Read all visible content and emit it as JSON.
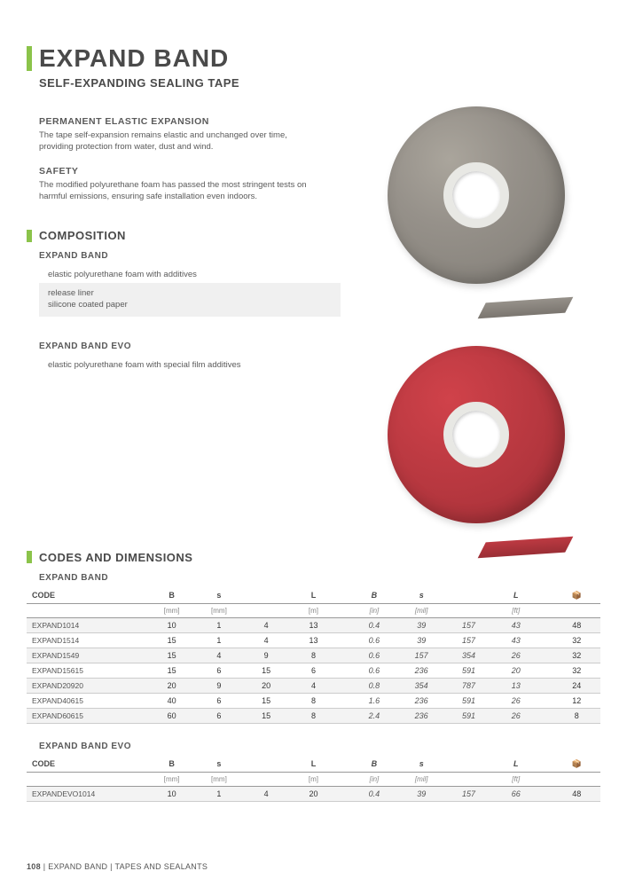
{
  "accent_color": "#8bc34a",
  "title": "EXPAND BAND",
  "subtitle": "SELF-EXPANDING SEALING TAPE",
  "features": [
    {
      "heading": "PERMANENT ELASTIC EXPANSION",
      "text": "The tape self-expansion remains elastic and unchanged over time, providing protection from water, dust and wind."
    },
    {
      "heading": "SAFETY",
      "text": "The modified polyurethane foam has passed the most stringent tests on harmful emissions, ensuring safe installation even indoors."
    }
  ],
  "composition_heading": "COMPOSITION",
  "composition": [
    {
      "name": "EXPAND BAND",
      "items": [
        {
          "type": "line",
          "text": "elastic polyurethane foam with additives"
        },
        {
          "type": "box",
          "text": "release liner\nsilicone coated paper"
        }
      ]
    },
    {
      "name": "EXPAND BAND EVO",
      "items": [
        {
          "type": "line",
          "text": "elastic polyurethane foam with special film additives"
        }
      ]
    }
  ],
  "images": {
    "gray_roll_color": "#96918a",
    "red_roll_color": "#bd3a42"
  },
  "codes_heading": "CODES AND DIMENSIONS",
  "tables": [
    {
      "name": "EXPAND BAND",
      "columns_metric": [
        "B",
        "s",
        "",
        "L"
      ],
      "units_metric": [
        "[mm]",
        "[mm]",
        "",
        "[m]"
      ],
      "columns_imp": [
        "B",
        "s",
        "",
        "L"
      ],
      "units_imp": [
        "[in]",
        "[mil]",
        "",
        "[ft]"
      ],
      "box_icon": "📦",
      "rows": [
        {
          "code": "EXPAND1014",
          "metric": [
            "10",
            "1",
            "4",
            "13"
          ],
          "imp": [
            "0.4",
            "39",
            "157",
            "43"
          ],
          "box": "48",
          "alt": true
        },
        {
          "code": "EXPAND1514",
          "metric": [
            "15",
            "1",
            "4",
            "13"
          ],
          "imp": [
            "0.6",
            "39",
            "157",
            "43"
          ],
          "box": "32",
          "alt": false
        },
        {
          "code": "EXPAND1549",
          "metric": [
            "15",
            "4",
            "9",
            "8"
          ],
          "imp": [
            "0.6",
            "157",
            "354",
            "26"
          ],
          "box": "32",
          "alt": true
        },
        {
          "code": "EXPAND15615",
          "metric": [
            "15",
            "6",
            "15",
            "6"
          ],
          "imp": [
            "0.6",
            "236",
            "591",
            "20"
          ],
          "box": "32",
          "alt": false
        },
        {
          "code": "EXPAND20920",
          "metric": [
            "20",
            "9",
            "20",
            "4"
          ],
          "imp": [
            "0.8",
            "354",
            "787",
            "13"
          ],
          "box": "24",
          "alt": true
        },
        {
          "code": "EXPAND40615",
          "metric": [
            "40",
            "6",
            "15",
            "8"
          ],
          "imp": [
            "1.6",
            "236",
            "591",
            "26"
          ],
          "box": "12",
          "alt": false
        },
        {
          "code": "EXPAND60615",
          "metric": [
            "60",
            "6",
            "15",
            "8"
          ],
          "imp": [
            "2.4",
            "236",
            "591",
            "26"
          ],
          "box": "8",
          "alt": true
        }
      ]
    },
    {
      "name": "EXPAND BAND EVO",
      "columns_metric": [
        "B",
        "s",
        "",
        "L"
      ],
      "units_metric": [
        "[mm]",
        "[mm]",
        "",
        "[m]"
      ],
      "columns_imp": [
        "B",
        "s",
        "",
        "L"
      ],
      "units_imp": [
        "[in]",
        "[mil]",
        "",
        "[ft]"
      ],
      "box_icon": "📦",
      "rows": [
        {
          "code": "EXPANDEVO1014",
          "metric": [
            "10",
            "1",
            "4",
            "20"
          ],
          "imp": [
            "0.4",
            "39",
            "157",
            "66"
          ],
          "box": "48",
          "alt": true
        }
      ]
    }
  ],
  "footer": {
    "page": "108",
    "sep": " | ",
    "product": "EXPAND BAND",
    "category": "TAPES AND SEALANTS"
  }
}
